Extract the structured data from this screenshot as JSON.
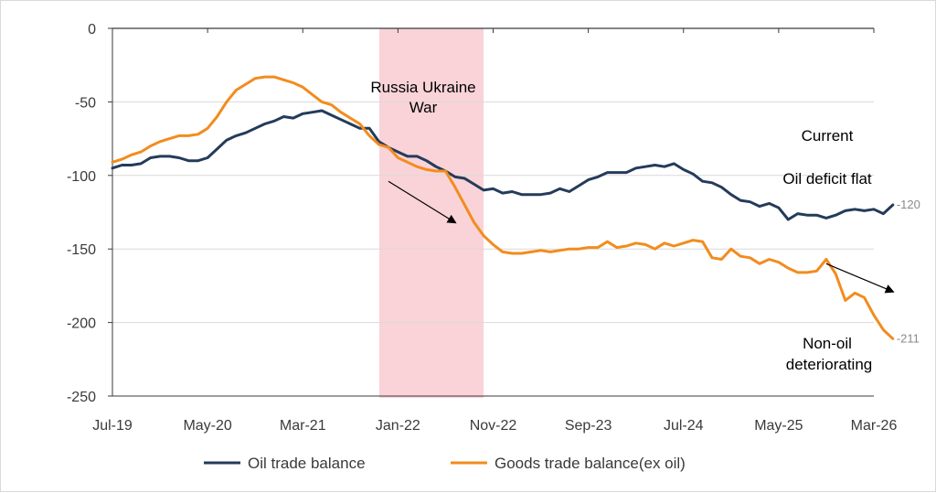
{
  "colors": {
    "oil": "#243b5a",
    "goods": "#f28c1e",
    "shade": "#f9d3d8",
    "grid": "#d9d9d9",
    "axis": "#3a3a3a"
  },
  "chart_data": {
    "type": "line",
    "title": "",
    "xlabel": "",
    "ylabel": "",
    "ylim": [
      -250,
      0
    ],
    "yticks": [
      0,
      -50,
      -100,
      -150,
      -200,
      -250
    ],
    "ytick_labels": [
      "0",
      "-50",
      "-100",
      "-150",
      "-200",
      "-250"
    ],
    "x_range": [
      "2019-07",
      "2026-03"
    ],
    "xtick_labels": [
      "Jul-19",
      "May-20",
      "Mar-21",
      "Jan-22",
      "Nov-22",
      "Sep-23",
      "Jul-24",
      "May-25",
      "Mar-26"
    ],
    "xtick_months": [
      "2019-07",
      "2020-05",
      "2021-03",
      "2022-01",
      "2022-11",
      "2023-09",
      "2024-07",
      "2025-05",
      "2026-03"
    ],
    "grid": "horizontal",
    "legend_position": "bottom",
    "shaded_region": {
      "start": "2021-12",
      "end": "2022-10",
      "label": "Russia Ukraine War"
    },
    "series": [
      {
        "name": "Oil trade balance",
        "color": "#243b5a",
        "end_label": "-120",
        "points": [
          [
            "2019-07",
            -95
          ],
          [
            "2019-08",
            -93
          ],
          [
            "2019-09",
            -93
          ],
          [
            "2019-10",
            -92
          ],
          [
            "2019-11",
            -88
          ],
          [
            "2019-12",
            -87
          ],
          [
            "2020-01",
            -87
          ],
          [
            "2020-02",
            -88
          ],
          [
            "2020-03",
            -90
          ],
          [
            "2020-04",
            -90
          ],
          [
            "2020-05",
            -88
          ],
          [
            "2020-06",
            -82
          ],
          [
            "2020-07",
            -76
          ],
          [
            "2020-08",
            -73
          ],
          [
            "2020-09",
            -71
          ],
          [
            "2020-10",
            -68
          ],
          [
            "2020-11",
            -65
          ],
          [
            "2020-12",
            -63
          ],
          [
            "2021-01",
            -60
          ],
          [
            "2021-02",
            -61
          ],
          [
            "2021-03",
            -58
          ],
          [
            "2021-04",
            -57
          ],
          [
            "2021-05",
            -56
          ],
          [
            "2021-06",
            -59
          ],
          [
            "2021-07",
            -62
          ],
          [
            "2021-08",
            -65
          ],
          [
            "2021-09",
            -68
          ],
          [
            "2021-10",
            -68
          ],
          [
            "2021-11",
            -77
          ],
          [
            "2021-12",
            -81
          ],
          [
            "2022-01",
            -84
          ],
          [
            "2022-02",
            -87
          ],
          [
            "2022-03",
            -87
          ],
          [
            "2022-04",
            -90
          ],
          [
            "2022-05",
            -94
          ],
          [
            "2022-06",
            -97
          ],
          [
            "2022-07",
            -101
          ],
          [
            "2022-08",
            -102
          ],
          [
            "2022-09",
            -106
          ],
          [
            "2022-10",
            -110
          ],
          [
            "2022-11",
            -109
          ],
          [
            "2022-12",
            -112
          ],
          [
            "2023-01",
            -111
          ],
          [
            "2023-02",
            -113
          ],
          [
            "2023-03",
            -113
          ],
          [
            "2023-04",
            -113
          ],
          [
            "2023-05",
            -112
          ],
          [
            "2023-06",
            -109
          ],
          [
            "2023-07",
            -111
          ],
          [
            "2023-08",
            -107
          ],
          [
            "2023-09",
            -103
          ],
          [
            "2023-10",
            -101
          ],
          [
            "2023-11",
            -98
          ],
          [
            "2023-12",
            -98
          ],
          [
            "2024-01",
            -98
          ],
          [
            "2024-02",
            -95
          ],
          [
            "2024-03",
            -94
          ],
          [
            "2024-04",
            -93
          ],
          [
            "2024-05",
            -94
          ],
          [
            "2024-06",
            -92
          ],
          [
            "2024-07",
            -96
          ],
          [
            "2024-08",
            -99
          ],
          [
            "2024-09",
            -104
          ],
          [
            "2024-10",
            -105
          ],
          [
            "2024-11",
            -108
          ],
          [
            "2024-12",
            -113
          ],
          [
            "2025-01",
            -117
          ],
          [
            "2025-02",
            -118
          ],
          [
            "2025-03",
            -121
          ],
          [
            "2025-04",
            -119
          ],
          [
            "2025-05",
            -122
          ],
          [
            "2025-06",
            -130
          ],
          [
            "2025-07",
            -126
          ],
          [
            "2025-08",
            -127
          ],
          [
            "2025-09",
            -127
          ],
          [
            "2025-10",
            -129
          ],
          [
            "2025-11",
            -127
          ],
          [
            "2025-12",
            -124
          ],
          [
            "2026-01",
            -123
          ],
          [
            "2026-02",
            -124
          ],
          [
            "2026-03",
            -123
          ],
          [
            "2026-04",
            -126
          ],
          [
            "2026-05",
            -120
          ]
        ]
      },
      {
        "name": "Goods trade balance(ex oil)",
        "color": "#f28c1e",
        "end_label": "-211",
        "points": [
          [
            "2019-07",
            -91
          ],
          [
            "2019-08",
            -89
          ],
          [
            "2019-09",
            -86
          ],
          [
            "2019-10",
            -84
          ],
          [
            "2019-11",
            -80
          ],
          [
            "2019-12",
            -77
          ],
          [
            "2020-01",
            -75
          ],
          [
            "2020-02",
            -73
          ],
          [
            "2020-03",
            -73
          ],
          [
            "2020-04",
            -72
          ],
          [
            "2020-05",
            -68
          ],
          [
            "2020-06",
            -60
          ],
          [
            "2020-07",
            -50
          ],
          [
            "2020-08",
            -42
          ],
          [
            "2020-09",
            -38
          ],
          [
            "2020-10",
            -34
          ],
          [
            "2020-11",
            -33
          ],
          [
            "2020-12",
            -33
          ],
          [
            "2021-01",
            -35
          ],
          [
            "2021-02",
            -37
          ],
          [
            "2021-03",
            -40
          ],
          [
            "2021-04",
            -45
          ],
          [
            "2021-05",
            -50
          ],
          [
            "2021-06",
            -52
          ],
          [
            "2021-07",
            -57
          ],
          [
            "2021-08",
            -61
          ],
          [
            "2021-09",
            -65
          ],
          [
            "2021-10",
            -73
          ],
          [
            "2021-11",
            -79
          ],
          [
            "2021-12",
            -81
          ],
          [
            "2022-01",
            -88
          ],
          [
            "2022-02",
            -91
          ],
          [
            "2022-03",
            -94
          ],
          [
            "2022-04",
            -96
          ],
          [
            "2022-05",
            -97
          ],
          [
            "2022-06",
            -97
          ],
          [
            "2022-07",
            -108
          ],
          [
            "2022-08",
            -120
          ],
          [
            "2022-09",
            -132
          ],
          [
            "2022-10",
            -141
          ],
          [
            "2022-11",
            -147
          ],
          [
            "2022-12",
            -152
          ],
          [
            "2023-01",
            -153
          ],
          [
            "2023-02",
            -153
          ],
          [
            "2023-03",
            -152
          ],
          [
            "2023-04",
            -151
          ],
          [
            "2023-05",
            -152
          ],
          [
            "2023-06",
            -151
          ],
          [
            "2023-07",
            -150
          ],
          [
            "2023-08",
            -150
          ],
          [
            "2023-09",
            -149
          ],
          [
            "2023-10",
            -149
          ],
          [
            "2023-11",
            -145
          ],
          [
            "2023-12",
            -149
          ],
          [
            "2024-01",
            -148
          ],
          [
            "2024-02",
            -146
          ],
          [
            "2024-03",
            -147
          ],
          [
            "2024-04",
            -150
          ],
          [
            "2024-05",
            -146
          ],
          [
            "2024-06",
            -148
          ],
          [
            "2024-07",
            -146
          ],
          [
            "2024-08",
            -144
          ],
          [
            "2024-09",
            -145
          ],
          [
            "2024-10",
            -156
          ],
          [
            "2024-11",
            -157
          ],
          [
            "2024-12",
            -150
          ],
          [
            "2025-01",
            -155
          ],
          [
            "2025-02",
            -156
          ],
          [
            "2025-03",
            -160
          ],
          [
            "2025-04",
            -157
          ],
          [
            "2025-05",
            -159
          ],
          [
            "2025-06",
            -163
          ],
          [
            "2025-07",
            -166
          ],
          [
            "2025-08",
            -166
          ],
          [
            "2025-09",
            -165
          ],
          [
            "2025-10",
            -157
          ],
          [
            "2025-11",
            -167
          ],
          [
            "2025-12",
            -185
          ],
          [
            "2026-01",
            -180
          ],
          [
            "2026-02",
            -183
          ],
          [
            "2026-03",
            -195
          ],
          [
            "2026-04",
            -205
          ],
          [
            "2026-05",
            -211
          ]
        ]
      }
    ],
    "annotations": {
      "current": "Current",
      "oil_flat": "Oil deficit flat",
      "nonoil_line1": "Non-oil",
      "nonoil_line2": "deteriorating",
      "war_line1": "Russia Ukraine",
      "war_line2": "War"
    },
    "arrows": [
      {
        "name": "war-arrow",
        "from": [
          "2021-12",
          -104
        ],
        "to": [
          "2022-07",
          -132
        ]
      },
      {
        "name": "current-arrow",
        "from": [
          "2025-10",
          -160
        ],
        "to": [
          "2026-05",
          -179
        ]
      }
    ]
  }
}
